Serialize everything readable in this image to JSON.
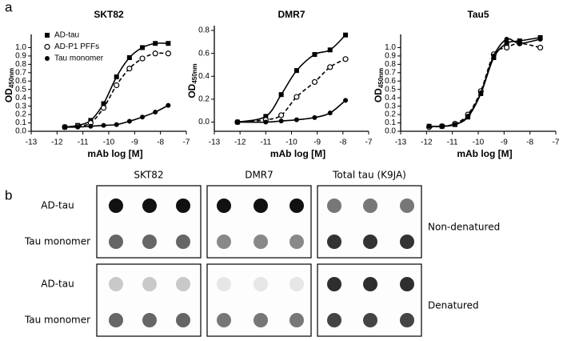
{
  "panel_a_label": "a",
  "panel_b_label": "b",
  "chart_data": [
    {
      "type": "line",
      "title": "SKT82",
      "xlabel": "mAb log [M]",
      "ylabel": "OD",
      "ylabel_sub": "450nm",
      "xlim": [
        -13,
        -7
      ],
      "xticks": [
        -13,
        -12,
        -11,
        -10,
        -9,
        -8,
        -7
      ],
      "ylim": [
        0,
        1.1
      ],
      "yticks": [
        {
          "value": 0,
          "label": "0.0"
        },
        0.1,
        0.2,
        0.3,
        0.4,
        0.5,
        0.6,
        0.7,
        0.8,
        0.9,
        {
          "value": 1,
          "label": "1.0"
        }
      ],
      "legend": "upper left",
      "x": [
        -11.7,
        -11.2,
        -10.7,
        -10.2,
        -9.7,
        -9.2,
        -8.7,
        -8.2,
        -7.7
      ],
      "series": [
        {
          "name": "AD-tau",
          "color": "#000000",
          "marker": "square",
          "dashed": false,
          "values": [
            0.05,
            0.07,
            0.13,
            0.33,
            0.65,
            0.88,
            1.0,
            1.05,
            1.05
          ]
        },
        {
          "name": "AD-P1 PFFs",
          "color": "#000000",
          "marker": "open-circle",
          "dashed": true,
          "values": [
            0.05,
            0.06,
            0.1,
            0.28,
            0.55,
            0.75,
            0.87,
            0.93,
            0.93
          ]
        },
        {
          "name": "Tau monomer",
          "color": "#000000",
          "marker": "circle",
          "dashed": false,
          "values": [
            0.05,
            0.05,
            0.06,
            0.07,
            0.08,
            0.12,
            0.17,
            0.23,
            0.31
          ]
        }
      ]
    },
    {
      "type": "line",
      "title": "DMR7",
      "xlabel": "mAb log [M]",
      "ylabel": "OD",
      "ylabel_sub": "450nm",
      "xlim": [
        -13,
        -7
      ],
      "xticks": [
        -13,
        -12,
        -11,
        -10,
        -9,
        -8,
        -7
      ],
      "ylim": [
        -0.08,
        0.8
      ],
      "yticks": [
        {
          "value": 0,
          "label": "0.0"
        },
        0.2,
        0.4,
        0.6,
        0.8
      ],
      "x": [
        -12.1,
        -11.0,
        -10.4,
        -9.8,
        -9.1,
        -8.5,
        -7.9
      ],
      "series": [
        {
          "color": "#000000",
          "marker": "square",
          "dashed": false,
          "values": [
            0.0,
            0.05,
            0.24,
            0.45,
            0.59,
            0.63,
            0.76
          ]
        },
        {
          "color": "#000000",
          "marker": "open-circle",
          "dashed": true,
          "values": [
            0.0,
            0.02,
            0.06,
            0.22,
            0.35,
            0.48,
            0.55
          ]
        },
        {
          "color": "#000000",
          "marker": "circle",
          "dashed": false,
          "values": [
            0.0,
            0.0,
            0.01,
            0.02,
            0.04,
            0.08,
            0.19
          ]
        }
      ]
    },
    {
      "type": "line",
      "title": "Tau5",
      "xlabel": "mAb log [M]",
      "ylabel": "OD",
      "ylabel_sub": "450nm",
      "xlim": [
        -13,
        -7
      ],
      "xticks": [
        -13,
        -12,
        -11,
        -10,
        -9,
        -8,
        -7
      ],
      "ylim": [
        0,
        1.1
      ],
      "yticks": [
        {
          "value": 0,
          "label": "0.0"
        },
        0.1,
        0.2,
        0.3,
        0.4,
        0.5,
        0.6,
        0.7,
        0.8,
        0.9,
        {
          "value": 1,
          "label": "1.0"
        }
      ],
      "x": [
        -11.9,
        -11.4,
        -10.9,
        -10.4,
        -9.9,
        -9.4,
        -8.9,
        -8.4,
        -7.6
      ],
      "series": [
        {
          "color": "#000000",
          "marker": "square",
          "dashed": false,
          "values": [
            0.06,
            0.06,
            0.08,
            0.17,
            0.45,
            0.88,
            1.05,
            1.08,
            1.12
          ]
        },
        {
          "color": "#000000",
          "marker": "open-circle",
          "dashed": true,
          "values": [
            0.05,
            0.06,
            0.09,
            0.2,
            0.48,
            0.92,
            1.0,
            1.05,
            1.0
          ]
        },
        {
          "color": "#000000",
          "marker": "circle",
          "dashed": false,
          "values": [
            0.06,
            0.06,
            0.08,
            0.18,
            0.46,
            0.9,
            1.1,
            1.05,
            1.1
          ]
        }
      ]
    }
  ],
  "blot": {
    "columns": [
      "SKT82",
      "DMR7",
      "Total tau (K9JA)"
    ],
    "rows": [
      {
        "condition": "Non-denatured",
        "labels": [
          "AD-tau",
          "Tau monomer"
        ]
      },
      {
        "condition": "Denatured",
        "labels": [
          "AD-tau",
          "Tau monomer"
        ]
      }
    ]
  }
}
